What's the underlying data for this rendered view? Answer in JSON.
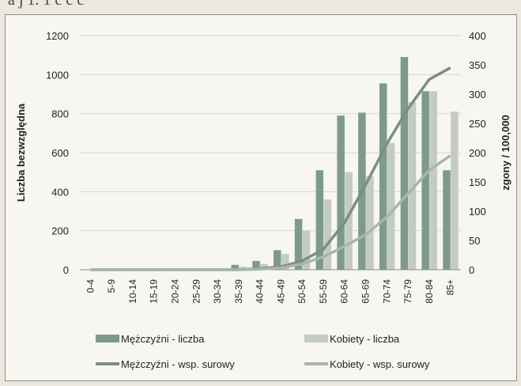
{
  "header": {
    "caption_fragment": "a j 1. 1 c c c"
  },
  "chart_data": {
    "type": "bar",
    "categories": [
      "0-4",
      "5-9",
      "10-14",
      "15-19",
      "20-24",
      "25-29",
      "30-34",
      "35-39",
      "40-44",
      "45-49",
      "50-54",
      "55-59",
      "60-64",
      "65-69",
      "70-74",
      "75-79",
      "80-84",
      "85+"
    ],
    "series": [
      {
        "name": "Mężczyźni - liczba",
        "type": "bar",
        "axis": "left",
        "color": "#7d9b8a",
        "values": [
          2,
          1,
          1,
          2,
          3,
          4,
          8,
          25,
          45,
          100,
          260,
          510,
          790,
          805,
          955,
          1090,
          915,
          510
        ]
      },
      {
        "name": "Kobiety - liczba",
        "type": "bar",
        "axis": "left",
        "color": "#c3cbc2",
        "values": [
          1,
          1,
          1,
          1,
          2,
          3,
          5,
          15,
          30,
          80,
          200,
          360,
          500,
          480,
          650,
          860,
          915,
          810
        ]
      },
      {
        "name": "Mężczyźni - wsp. surowy",
        "type": "line",
        "axis": "right",
        "color": "#7a8e84",
        "values": [
          0,
          0,
          0,
          0,
          0,
          0,
          0,
          0,
          2,
          5,
          15,
          35,
          80,
          145,
          215,
          275,
          325,
          345
        ]
      },
      {
        "name": "Kobiety - wsp. surowy",
        "type": "line",
        "axis": "right",
        "color": "#a9b5ad",
        "values": [
          0,
          0,
          0,
          0,
          0,
          0,
          0,
          0,
          1,
          3,
          10,
          22,
          40,
          60,
          90,
          130,
          170,
          195
        ]
      }
    ],
    "ylabel": "Liczba bezwzględna",
    "y2label": "zgony / 100,000",
    "ylim": [
      0,
      1200
    ],
    "y2lim": [
      0,
      400
    ],
    "yticks": [
      "0",
      "200",
      "400",
      "600",
      "800",
      "1000",
      "1200"
    ],
    "y2ticks": [
      "0",
      "50",
      "100",
      "150",
      "200",
      "250",
      "300",
      "350",
      "400"
    ],
    "grid": true,
    "legend_position": "bottom"
  }
}
